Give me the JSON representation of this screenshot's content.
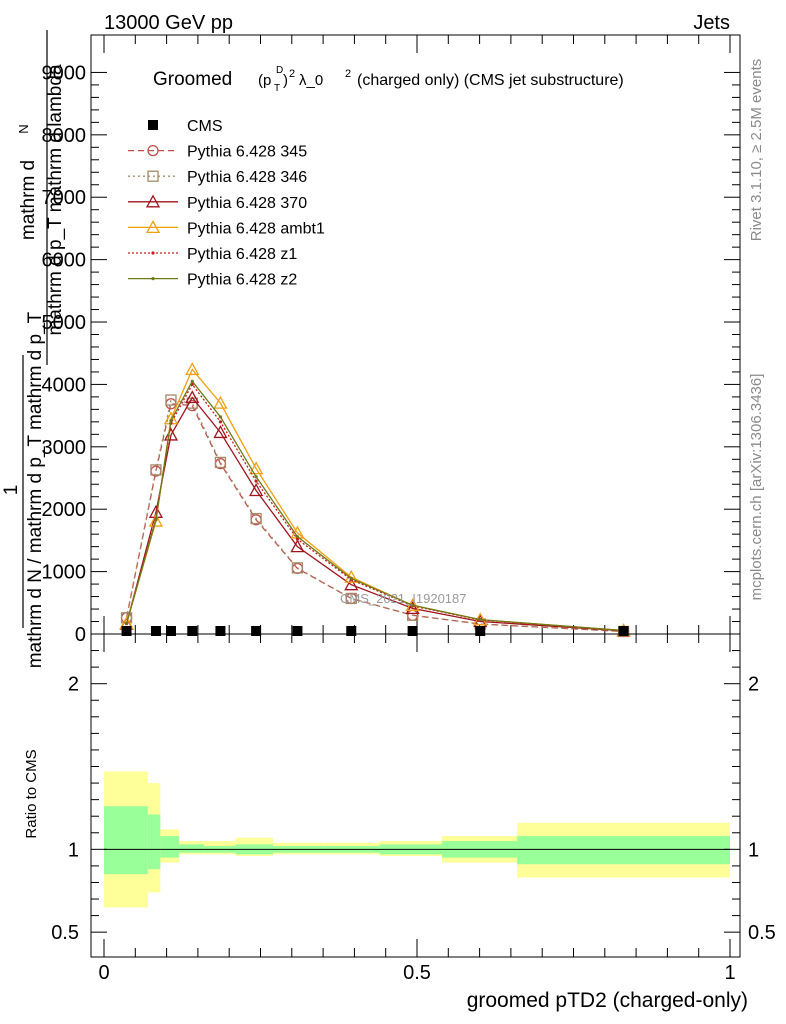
{
  "header": {
    "energy_label": "13000 GeV pp",
    "process_label": "Jets",
    "rivet_label": "Rivet 3.1.10, ≥ 2.5M events",
    "mcplots_label": "mcplots.cern.ch [arXiv:1306.3436]"
  },
  "chart_data": {
    "type": "line",
    "title_prefix": "Groomed",
    "title_suffix": "λ_0",
    "title_rest": "(charged only) (CMS jet substructure)",
    "xlabel": "groomed pTD2 (charged-only)",
    "ylabel_main_numerator": "mathrm d",
    "ylabel_main_numerator_sub": "N",
    "ylabel_main_denominator": "mathrm d p_T mathrm d lambda",
    "ylabel_main_prefix": "1",
    "ylabel_main_prefix_denominator": "mathrm d N / mathrm d p_T mathrm d p_T",
    "ylabel_ratio": "Ratio to CMS",
    "watermark": "CMS_2021_I1920187",
    "xlim": [
      0,
      1
    ],
    "ylim_main": [
      0,
      9600
    ],
    "ylim_ratio": [
      0.35,
      2.3
    ],
    "x_ticks": [
      0,
      0.5,
      1
    ],
    "x_tick_labels": [
      "0",
      "0.5",
      "1"
    ],
    "y_ticks_main": [
      0,
      1000,
      2000,
      3000,
      4000,
      5000,
      6000,
      7000,
      8000,
      9000
    ],
    "y_tick_labels_main": [
      "0",
      "1000",
      "2000",
      "3000",
      "4000",
      "5000",
      "6000",
      "7000",
      "8000",
      "9000"
    ],
    "y_ticks_ratio": [
      0.5,
      1,
      2
    ],
    "y_tick_labels_ratio": [
      "0.5",
      "1",
      "2"
    ],
    "legend_position": "top-left",
    "cms": {
      "name": "CMS",
      "x": [
        0.036,
        0.083,
        0.107,
        0.141,
        0.186,
        0.243,
        0.309,
        0.395,
        0.493,
        0.601,
        0.83
      ],
      "values": [
        0,
        0,
        0,
        0,
        0,
        0,
        0,
        0,
        0,
        0,
        0
      ]
    },
    "ratio_bands": [
      {
        "x0": 0.0,
        "x1": 0.07,
        "inner": [
          0.85,
          1.26
        ],
        "outer": [
          0.65,
          1.47
        ]
      },
      {
        "x0": 0.07,
        "x1": 0.09,
        "inner": [
          0.88,
          1.21
        ],
        "outer": [
          0.74,
          1.4
        ]
      },
      {
        "x0": 0.09,
        "x1": 0.12,
        "inner": [
          0.95,
          1.08
        ],
        "outer": [
          0.92,
          1.12
        ]
      },
      {
        "x0": 0.12,
        "x1": 0.16,
        "inner": [
          0.98,
          1.03
        ],
        "outer": [
          0.97,
          1.05
        ]
      },
      {
        "x0": 0.16,
        "x1": 0.21,
        "inner": [
          0.98,
          1.02
        ],
        "outer": [
          0.97,
          1.05
        ]
      },
      {
        "x0": 0.21,
        "x1": 0.27,
        "inner": [
          0.97,
          1.03
        ],
        "outer": [
          0.96,
          1.07
        ]
      },
      {
        "x0": 0.27,
        "x1": 0.35,
        "inner": [
          0.98,
          1.02
        ],
        "outer": [
          0.97,
          1.04
        ]
      },
      {
        "x0": 0.35,
        "x1": 0.44,
        "inner": [
          0.98,
          1.02
        ],
        "outer": [
          0.97,
          1.04
        ]
      },
      {
        "x0": 0.44,
        "x1": 0.54,
        "inner": [
          0.97,
          1.03
        ],
        "outer": [
          0.96,
          1.05
        ]
      },
      {
        "x0": 0.54,
        "x1": 0.66,
        "inner": [
          0.95,
          1.05
        ],
        "outer": [
          0.92,
          1.08
        ]
      },
      {
        "x0": 0.66,
        "x1": 1.0,
        "inner": [
          0.91,
          1.08
        ],
        "outer": [
          0.83,
          1.16
        ]
      }
    ],
    "series": [
      {
        "name": "Pythia 6.428 345",
        "color": "#c0504d",
        "dash": "6,4",
        "marker": "circle",
        "x": [
          0.036,
          0.083,
          0.107,
          0.141,
          0.186,
          0.243,
          0.309,
          0.395,
          0.493,
          0.601,
          0.83
        ],
        "values": [
          260,
          2610,
          3690,
          3660,
          2730,
          1830,
          1050,
          570,
          300,
          160,
          40
        ]
      },
      {
        "name": "Pythia 6.428 346",
        "color": "#a58a68",
        "dash": "2,3",
        "marker": "square",
        "x": [
          0.036,
          0.083,
          0.107,
          0.141,
          0.186,
          0.243,
          0.309,
          0.395,
          0.493,
          0.601,
          0.83
        ],
        "values": [
          260,
          2630,
          3750,
          3700,
          2750,
          1850,
          1060,
          570,
          300,
          160,
          40
        ]
      },
      {
        "name": "Pythia 6.428 370",
        "color": "#a0141e",
        "dash": "",
        "marker": "triangle",
        "x": [
          0.036,
          0.083,
          0.107,
          0.141,
          0.186,
          0.243,
          0.309,
          0.395,
          0.493,
          0.601,
          0.83
        ],
        "values": [
          160,
          1950,
          3190,
          3790,
          3230,
          2300,
          1400,
          790,
          410,
          200,
          50
        ]
      },
      {
        "name": "Pythia 6.428 ambt1",
        "color": "#f0a010",
        "dash": "",
        "marker": "triangle",
        "x": [
          0.036,
          0.083,
          0.107,
          0.141,
          0.186,
          0.243,
          0.309,
          0.395,
          0.493,
          0.601,
          0.83
        ],
        "values": [
          170,
          1810,
          3450,
          4240,
          3700,
          2650,
          1620,
          910,
          460,
          230,
          55
        ]
      },
      {
        "name": "Pythia 6.428 z1",
        "color": "#c81e1e",
        "dash": "2,2",
        "marker": "dot",
        "x": [
          0.036,
          0.083,
          0.107,
          0.141,
          0.186,
          0.243,
          0.309,
          0.395,
          0.493,
          0.601,
          0.83
        ],
        "values": [
          165,
          1850,
          3380,
          4000,
          3400,
          2450,
          1520,
          870,
          450,
          225,
          55
        ]
      },
      {
        "name": "Pythia 6.428 z2",
        "color": "#6e7a18",
        "dash": "",
        "marker": "dot",
        "x": [
          0.036,
          0.083,
          0.107,
          0.141,
          0.186,
          0.243,
          0.309,
          0.395,
          0.493,
          0.601,
          0.83
        ],
        "values": [
          170,
          1830,
          3420,
          4050,
          3480,
          2520,
          1560,
          890,
          460,
          230,
          55
        ]
      }
    ]
  }
}
